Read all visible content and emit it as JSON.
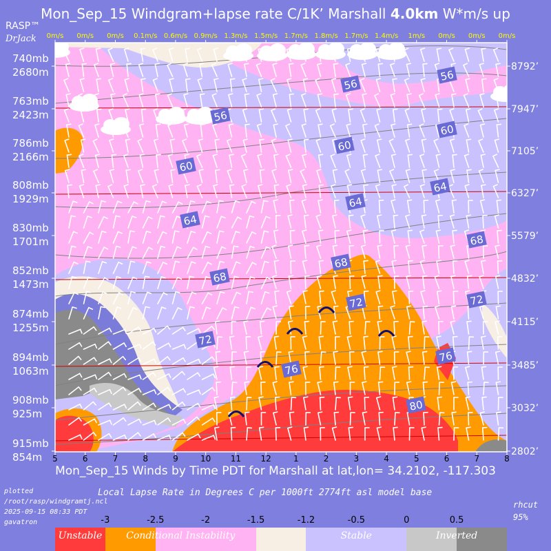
{
  "title": {
    "prefix": "Mon_Sep_15 Windgram+lapse rate C/1K’  Marshall ",
    "bold": "4.0km",
    "suffix": "  W*m/s up"
  },
  "brand": {
    "name": "RASP™",
    "author": "DrJack"
  },
  "x_axis_title": "Mon_Sep_15 Winds by Time PDT for Marshall at lat,lon= 34.2102, -117.303",
  "plotted": [
    "plotted",
    "/root/rasp/windgramtj.ncl",
    "2025-09-15 08:33 PDT",
    "gavatron"
  ],
  "legend_title": "Local Lapse Rate in Degrees C per 1000ft  2774ft asl model base",
  "rhcut": [
    "rhcut",
    "95%"
  ],
  "colorbar": {
    "ticks": [
      "-3",
      "-2.5",
      "-2",
      "-1.5",
      "-1.2",
      "-0.5",
      "0",
      "0.5"
    ],
    "segments": [
      {
        "color": "#ff3b3b"
      },
      {
        "color": "#ff9a00"
      },
      {
        "color": "#ffb3f3"
      },
      {
        "color": "#ffb3f3"
      },
      {
        "color": "#f7eee4"
      },
      {
        "color": "#c9c2ff"
      },
      {
        "color": "#c9c2ff"
      },
      {
        "color": "#c8c8c8"
      },
      {
        "color": "#8a8a8a"
      }
    ],
    "labels": [
      "Unstable",
      "Conditional Instability",
      "Stable",
      "Inverted"
    ]
  },
  "chart_data": {
    "type": "heatmap",
    "x_ticks": [
      "5",
      "6",
      "7",
      "8",
      "9",
      "10",
      "11",
      "12",
      "1",
      "2",
      "3",
      "4",
      "5",
      "6",
      "7",
      "8"
    ],
    "y_left_mb": [
      "740mb",
      "763mb",
      "786mb",
      "808mb",
      "830mb",
      "852mb",
      "874mb",
      "894mb",
      "908mb",
      "915mb"
    ],
    "y_left_m": [
      "2680m",
      "2423m",
      "2166m",
      "1929m",
      "1701m",
      "1473m",
      "1255m",
      "1063m",
      "925m",
      "854m"
    ],
    "y_right_ft": [
      "8792’",
      "7947’",
      "7105’",
      "6327’",
      "5579’",
      "4832’",
      "4115’",
      "3485’",
      "3032’",
      "2802’"
    ],
    "w_star": [
      "0m/s",
      "0m/s",
      "0m/s",
      "0.1m/s",
      "0.6m/s",
      "0.9m/s",
      "1.3m/s",
      "1.5m/s",
      "1.7m/s",
      "1.8m/s",
      "1.7m/s",
      "1.4m/s",
      "1m/s",
      "0m/s",
      "0m/s",
      "0m/s"
    ],
    "isotherm_labels": [
      "56",
      "56",
      "56",
      "60",
      "60",
      "60",
      "64",
      "64",
      "64",
      "68",
      "68",
      "68",
      "72",
      "72",
      "72",
      "76",
      "76",
      "80"
    ]
  },
  "colors": {
    "background": "#7f7fdf",
    "unstable": "#ff3b3b",
    "conditional": "#ff9a00",
    "light_pink": "#ffb3f3",
    "stable": "#c9c2ff",
    "dark_stable": "#7b7bd9",
    "inverted_light": "#c8c8c8",
    "inverted_dark": "#8a8a8a",
    "cream": "#f7eee4",
    "tick_labels": "#ffff00",
    "height_lines": "#cc0000"
  }
}
